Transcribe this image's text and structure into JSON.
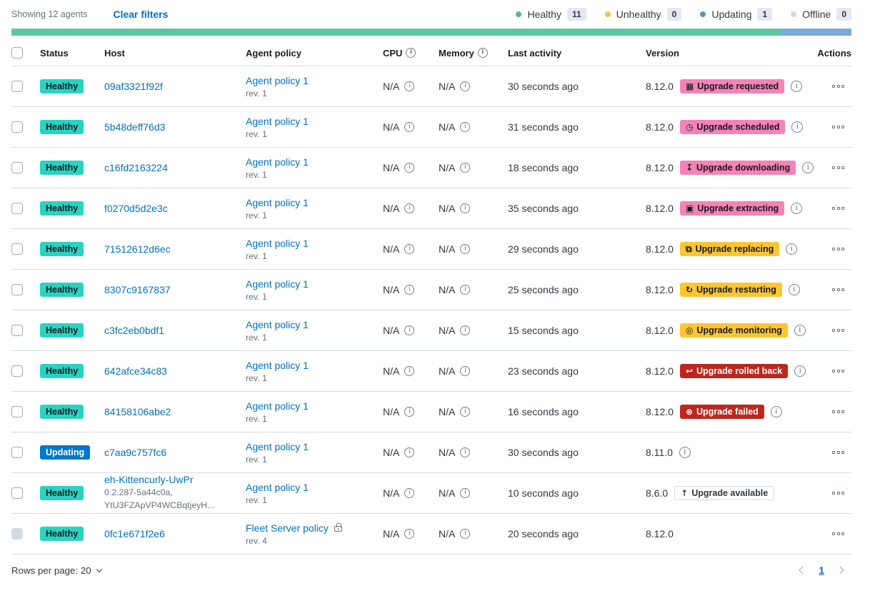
{
  "toolbar": {
    "showing": "Showing 12 agents",
    "clear_filters": "Clear filters"
  },
  "legend": {
    "items": [
      {
        "label": "Healthy",
        "count": "11",
        "color": "#54B399"
      },
      {
        "label": "Unhealthy",
        "count": "0",
        "color": "#E7C752"
      },
      {
        "label": "Updating",
        "count": "1",
        "color": "#6092C0"
      },
      {
        "label": "Offline",
        "count": "0",
        "color": "#D3DAE6"
      }
    ]
  },
  "progress": {
    "segments": [
      {
        "color": "#5DC6A3",
        "fraction": 0.9167
      },
      {
        "color": "#79A9D9",
        "fraction": 0.0833
      }
    ]
  },
  "table": {
    "columns": [
      {
        "label": "Status"
      },
      {
        "label": "Host"
      },
      {
        "label": "Agent policy"
      },
      {
        "label": "CPU",
        "info": true
      },
      {
        "label": "Memory",
        "info": true
      },
      {
        "label": "Last activity"
      },
      {
        "label": "Version"
      },
      {
        "label": "Actions"
      }
    ],
    "rows": [
      {
        "status": {
          "label": "Healthy",
          "bg": "#29D3C2",
          "fg": "#17191E"
        },
        "host": "09af3321f92f",
        "policy": "Agent policy 1",
        "policy_rev": "rev. 1",
        "cpu": "N/A",
        "memory": "N/A",
        "last_activity": "30 seconds ago",
        "version": "8.12.0",
        "upgrade": {
          "label": "Upgrade requested",
          "icon": "calendar-icon",
          "bg": "#F583B7",
          "fg": "#17191E"
        },
        "version_info": true
      },
      {
        "status": {
          "label": "Healthy",
          "bg": "#29D3C2",
          "fg": "#17191E"
        },
        "host": "5b48deff76d3",
        "policy": "Agent policy 1",
        "policy_rev": "rev. 1",
        "cpu": "N/A",
        "memory": "N/A",
        "last_activity": "31 seconds ago",
        "version": "8.12.0",
        "upgrade": {
          "label": "Upgrade scheduled",
          "icon": "clock-icon",
          "bg": "#F583B7",
          "fg": "#17191E"
        },
        "version_info": true
      },
      {
        "status": {
          "label": "Healthy",
          "bg": "#29D3C2",
          "fg": "#17191E"
        },
        "host": "c16fd2163224",
        "policy": "Agent policy 1",
        "policy_rev": "rev. 1",
        "cpu": "N/A",
        "memory": "N/A",
        "last_activity": "18 seconds ago",
        "version": "8.12.0",
        "upgrade": {
          "label": "Upgrade downloading",
          "icon": "download-icon",
          "bg": "#F583B7",
          "fg": "#17191E"
        },
        "version_info": true
      },
      {
        "status": {
          "label": "Healthy",
          "bg": "#29D3C2",
          "fg": "#17191E"
        },
        "host": "f0270d5d2e3c",
        "policy": "Agent policy 1",
        "policy_rev": "rev. 1",
        "cpu": "N/A",
        "memory": "N/A",
        "last_activity": "35 seconds ago",
        "version": "8.12.0",
        "upgrade": {
          "label": "Upgrade extracting",
          "icon": "package-icon",
          "bg": "#F583B7",
          "fg": "#17191E"
        },
        "version_info": true
      },
      {
        "status": {
          "label": "Healthy",
          "bg": "#29D3C2",
          "fg": "#17191E"
        },
        "host": "71512612d6ec",
        "policy": "Agent policy 1",
        "policy_rev": "rev. 1",
        "cpu": "N/A",
        "memory": "N/A",
        "last_activity": "29 seconds ago",
        "version": "8.12.0",
        "upgrade": {
          "label": "Upgrade replacing",
          "icon": "copy-icon",
          "bg": "#FDC531",
          "fg": "#17191E"
        },
        "version_info": true
      },
      {
        "status": {
          "label": "Healthy",
          "bg": "#29D3C2",
          "fg": "#17191E"
        },
        "host": "8307c9167837",
        "policy": "Agent policy 1",
        "policy_rev": "rev. 1",
        "cpu": "N/A",
        "memory": "N/A",
        "last_activity": "25 seconds ago",
        "version": "8.12.0",
        "upgrade": {
          "label": "Upgrade restarting",
          "icon": "refresh-icon",
          "bg": "#FDC531",
          "fg": "#17191E"
        },
        "version_info": true
      },
      {
        "status": {
          "label": "Healthy",
          "bg": "#29D3C2",
          "fg": "#17191E"
        },
        "host": "c3fc2eb0bdf1",
        "policy": "Agent policy 1",
        "policy_rev": "rev. 1",
        "cpu": "N/A",
        "memory": "N/A",
        "last_activity": "15 seconds ago",
        "version": "8.12.0",
        "upgrade": {
          "label": "Upgrade monitoring",
          "icon": "inspect-icon",
          "bg": "#FDC531",
          "fg": "#17191E"
        },
        "version_info": true
      },
      {
        "status": {
          "label": "Healthy",
          "bg": "#29D3C2",
          "fg": "#17191E"
        },
        "host": "642afce34c83",
        "policy": "Agent policy 1",
        "policy_rev": "rev. 1",
        "cpu": "N/A",
        "memory": "N/A",
        "last_activity": "23 seconds ago",
        "version": "8.12.0",
        "upgrade": {
          "label": "Upgrade rolled back",
          "icon": "return-icon",
          "bg": "#BD271E",
          "fg": "#FFFFFF"
        },
        "version_info": true
      },
      {
        "status": {
          "label": "Healthy",
          "bg": "#29D3C2",
          "fg": "#17191E"
        },
        "host": "84158106abe2",
        "policy": "Agent policy 1",
        "policy_rev": "rev. 1",
        "cpu": "N/A",
        "memory": "N/A",
        "last_activity": "16 seconds ago",
        "version": "8.12.0",
        "upgrade": {
          "label": "Upgrade failed",
          "icon": "error-icon",
          "bg": "#BD271E",
          "fg": "#FFFFFF"
        },
        "version_info": true
      },
      {
        "status": {
          "label": "Updating",
          "bg": "#0077CC",
          "fg": "#FFFFFF"
        },
        "host": "c7aa9c757fc6",
        "policy": "Agent policy 1",
        "policy_rev": "rev. 1",
        "cpu": "N/A",
        "memory": "N/A",
        "last_activity": "30 seconds ago",
        "version": "8.11.0",
        "upgrade": null,
        "version_info": true
      },
      {
        "status": {
          "label": "Healthy",
          "bg": "#29D3C2",
          "fg": "#17191E"
        },
        "host": "eh-Kittencurly-UwPr",
        "host_sub": "0.2.287-5a44c0a,\nYtU3FZApVP4WCBqtjeyH...",
        "policy": "Agent policy 1",
        "policy_rev": "rev. 1",
        "cpu": "N/A",
        "memory": "N/A",
        "last_activity": "10 seconds ago",
        "version": "8.6.0",
        "upgrade": {
          "label": "Upgrade available",
          "icon": "up-arrow-icon",
          "hollow": true
        },
        "version_info": false
      },
      {
        "status": {
          "label": "Healthy",
          "bg": "#29D3C2",
          "fg": "#17191E"
        },
        "host": "0fc1e671f2e6",
        "policy": "Fleet Server policy",
        "policy_locked": true,
        "policy_rev": "rev. 4",
        "cpu": "N/A",
        "memory": "N/A",
        "last_activity": "20 seconds ago",
        "version": "8.12.0",
        "upgrade": null,
        "version_info": false,
        "checkbox_disabled": true
      }
    ]
  },
  "footer": {
    "rows_per_page": "Rows per page: 20",
    "page": "1"
  }
}
